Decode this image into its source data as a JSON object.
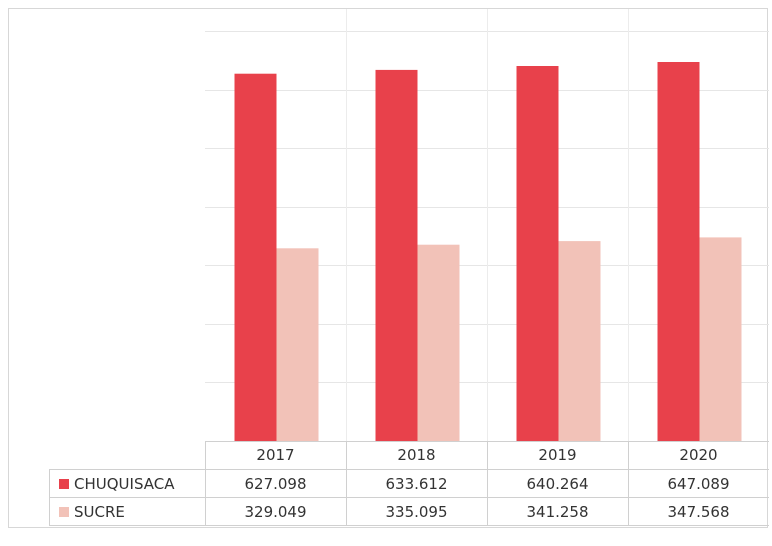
{
  "chart_data": {
    "type": "bar",
    "title": "",
    "xlabel": "",
    "ylabel": "",
    "ylim": [
      0,
      700
    ],
    "grid": true,
    "legend": "data-table",
    "categories": [
      "2017",
      "2018",
      "2019",
      "2020"
    ],
    "series": [
      {
        "name": "CHUQUISACA",
        "color": "#e8414b",
        "values": [
          627098,
          633612,
          640264,
          647089
        ],
        "labels": [
          "627.098",
          "633.612",
          "640.264",
          "647.089"
        ]
      },
      {
        "name": "SUCRE",
        "color": "#f2c2b8",
        "values": [
          329049,
          335095,
          341258,
          347568
        ],
        "labels": [
          "329.049",
          "335.095",
          "341.258",
          "347.568"
        ]
      }
    ]
  }
}
